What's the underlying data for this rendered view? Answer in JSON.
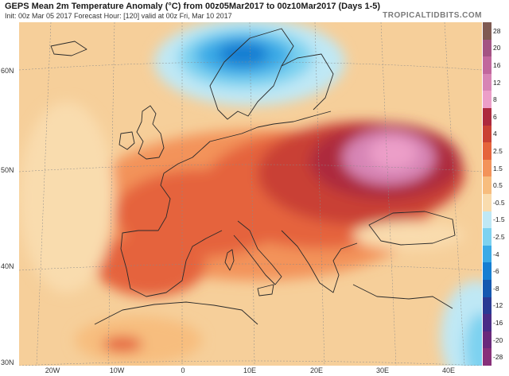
{
  "header": {
    "title": "GEPS Mean 2m Temperature Anomaly (°C) from 00z05Mar2017 to 00z10Mar2017 (Days 1-5)",
    "subtitle": "Init: 00z Mar 05 2017   Forecast Hour: [120]   valid at 00z Fri, Mar 10 2017",
    "brand": "TROPICALTIDBITS.COM"
  },
  "map": {
    "lat_labels": [
      "60N",
      "50N",
      "40N",
      "30N"
    ],
    "lon_labels": [
      "20W",
      "10W",
      "0",
      "10E",
      "20E",
      "30E",
      "40E"
    ]
  },
  "colorbar": {
    "labels": [
      "28",
      "20",
      "16",
      "12",
      "8",
      "6",
      "4",
      "2.5",
      "1.5",
      "0.5",
      "-0.5",
      "-1.5",
      "-2.5",
      "-4",
      "-6",
      "-8",
      "-12",
      "-16",
      "-20",
      "-28"
    ],
    "colors": [
      "#7f5a52",
      "#a35383",
      "#c1679d",
      "#d785b5",
      "#ec9ec8",
      "#ad2a3e",
      "#c94134",
      "#e5643c",
      "#f3935a",
      "#f7bd7e",
      "#f9dcae",
      "#bfe8f5",
      "#7dd2f0",
      "#3aaae6",
      "#167ed2",
      "#1458b0",
      "#2a3a94",
      "#4a2c86",
      "#6a2a7c",
      "#88307a"
    ]
  }
}
